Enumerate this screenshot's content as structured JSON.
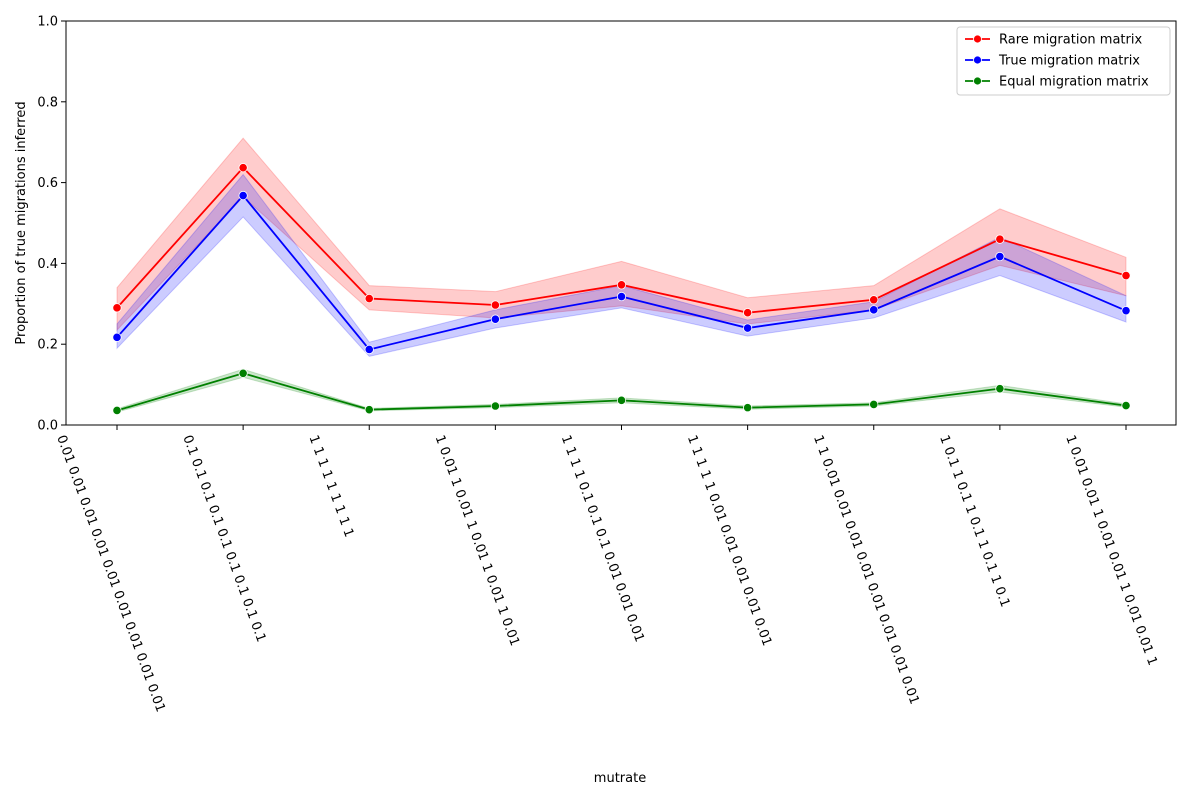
{
  "chart_data": {
    "type": "line",
    "xlabel": "mutrate",
    "ylabel": "Proportion of true migrations inferred",
    "ylim": [
      0,
      1.0
    ],
    "yticks": [
      "0.0",
      "0.2",
      "0.4",
      "0.6",
      "0.8",
      "1.0"
    ],
    "categories": [
      "0.01 0.01 0.01 0.01 0.01 0.01 0.01 0.01 0.01",
      "0.1 0.1 0.1 0.1 0.1 0.1 0.1 0.1 0.1",
      "1 1 1 1 1 1 1 1 1",
      "1 0.01 1 0.01 1 0.01 1 0.01 1 0.01",
      "1 1 1 1 0.1 0.1 0.1 0.01 0.01 0.01",
      "1 1 1 1 1 0.01 0.01 0.01 0.01 0.01",
      "1 1 0.01 0.01 0.01 0.01 0.01 0.01 0.01 0.01",
      "1 0.1 1 0.1 1 0.1 1 0.1 1 0.1",
      "1 0.01 0.01 1 0.01 0.01 1 0.01 0.01 1"
    ],
    "grid": false,
    "legend_position": "top-right",
    "series": [
      {
        "name": "Rare migration matrix",
        "color": "#ff0000",
        "values": [
          0.29,
          0.637,
          0.313,
          0.297,
          0.347,
          0.278,
          0.31,
          0.46,
          0.37
        ],
        "ci_low": [
          0.235,
          0.565,
          0.285,
          0.265,
          0.295,
          0.25,
          0.285,
          0.395,
          0.32
        ],
        "ci_high": [
          0.34,
          0.71,
          0.345,
          0.33,
          0.405,
          0.315,
          0.345,
          0.535,
          0.415
        ]
      },
      {
        "name": "True migration matrix",
        "color": "#0000ff",
        "values": [
          0.217,
          0.568,
          0.187,
          0.262,
          0.318,
          0.24,
          0.285,
          0.417,
          0.283
        ],
        "ci_low": [
          0.19,
          0.515,
          0.17,
          0.24,
          0.29,
          0.22,
          0.265,
          0.37,
          0.255
        ],
        "ci_high": [
          0.25,
          0.62,
          0.205,
          0.285,
          0.345,
          0.26,
          0.305,
          0.465,
          0.32
        ]
      },
      {
        "name": "Equal migration matrix",
        "color": "#008000",
        "values": [
          0.036,
          0.128,
          0.038,
          0.047,
          0.061,
          0.043,
          0.051,
          0.09,
          0.048
        ],
        "ci_low": [
          0.032,
          0.118,
          0.035,
          0.043,
          0.055,
          0.039,
          0.047,
          0.082,
          0.044
        ],
        "ci_high": [
          0.04,
          0.138,
          0.041,
          0.051,
          0.067,
          0.047,
          0.055,
          0.098,
          0.052
        ]
      }
    ]
  }
}
